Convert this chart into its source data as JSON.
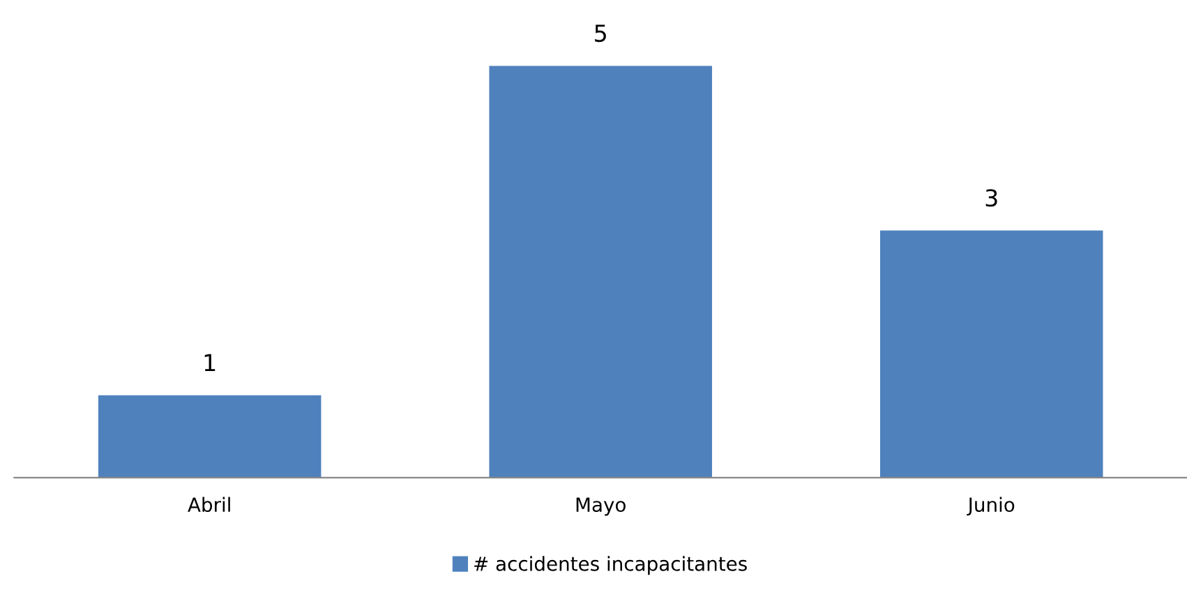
{
  "chart_data": {
    "type": "bar",
    "categories": [
      "Abril",
      "Mayo",
      "Junio"
    ],
    "series": [
      {
        "name": "# accidentes incapacitantes",
        "color": "#4f81bd",
        "values": [
          1,
          5,
          3
        ]
      }
    ],
    "data_labels": true,
    "legend": "bottom",
    "grid": false,
    "tick_labels": "x"
  }
}
